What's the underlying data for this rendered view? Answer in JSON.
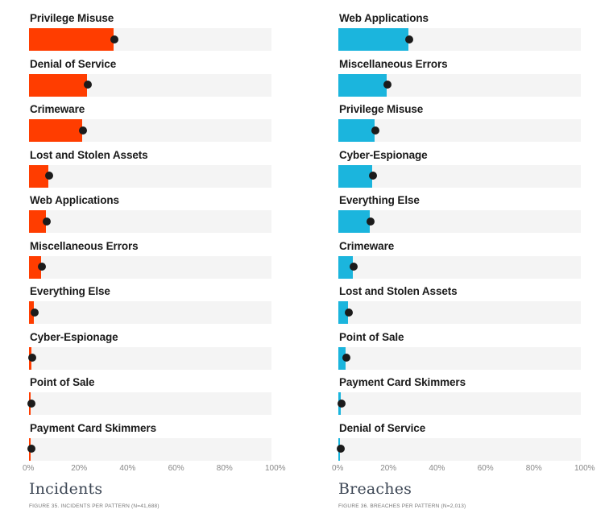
{
  "colors": {
    "incidents": "#ff3d00",
    "breaches": "#1bb5dd",
    "track": "#f4f4f4",
    "dot": "#1b1b1b"
  },
  "chart_data": [
    {
      "type": "bar",
      "orientation": "horizontal",
      "title": "Incidents",
      "caption": "FIGURE 35. INCIDENTS PER PATTERN (N=41,688)",
      "categories": [
        "Privilege Misuse",
        "Denial of Service",
        "Crimeware",
        "Lost and Stolen Assets",
        "Web Applications",
        "Miscellaneous Errors",
        "Everything Else",
        "Cyber-Espionage",
        "Point of Sale",
        "Payment Card Skimmers"
      ],
      "values": [
        0.35,
        0.24,
        0.22,
        0.08,
        0.07,
        0.05,
        0.02,
        0.01,
        0.005,
        0.004
      ],
      "xlim": [
        0,
        1
      ],
      "tick_labels": [
        "0%",
        "20%",
        "40%",
        "60%",
        "80%",
        "100%"
      ],
      "grid": false,
      "legend": "none"
    },
    {
      "type": "bar",
      "orientation": "horizontal",
      "title": "Breaches",
      "caption": "FIGURE 36. BREACHES PER PATTERN (N=2,013)",
      "categories": [
        "Web Applications",
        "Miscellaneous Errors",
        "Privilege Misuse",
        "Cyber-Espionage",
        "Everything Else",
        "Crimeware",
        "Lost and Stolen Assets",
        "Point of Sale",
        "Payment Card Skimmers",
        "Denial of Service"
      ],
      "values": [
        0.29,
        0.2,
        0.15,
        0.14,
        0.13,
        0.06,
        0.04,
        0.03,
        0.01,
        0.005
      ],
      "xlim": [
        0,
        1
      ],
      "tick_labels": [
        "0%",
        "20%",
        "40%",
        "60%",
        "80%",
        "100%"
      ],
      "grid": false,
      "legend": "none"
    }
  ]
}
